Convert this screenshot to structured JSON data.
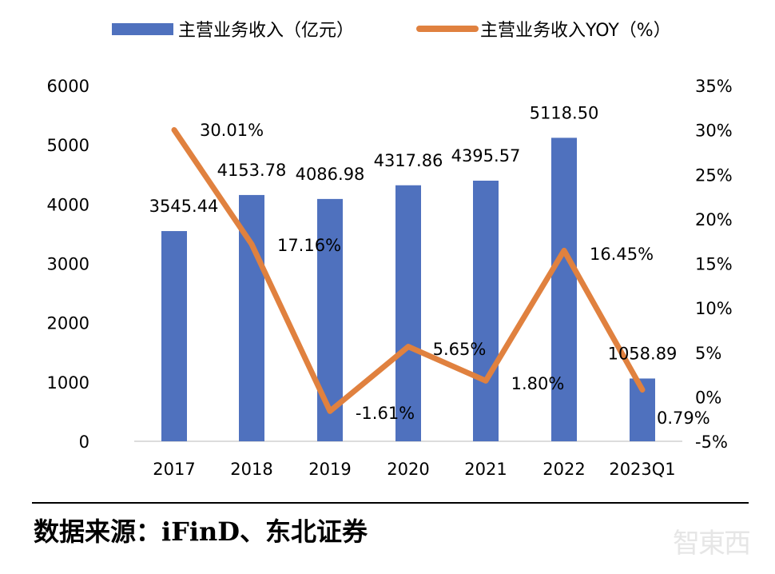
{
  "chart_data": {
    "type": "bar+line",
    "categories": [
      "2017",
      "2018",
      "2019",
      "2020",
      "2021",
      "2022",
      "2023Q1"
    ],
    "series": [
      {
        "name": "主营业务收入（亿元）",
        "type": "bar",
        "axis": "left",
        "color": "#4f71be",
        "values": [
          3545.44,
          4153.78,
          4086.98,
          4317.86,
          4395.57,
          5118.5,
          1058.89
        ],
        "labels": [
          "3545.44",
          "4153.78",
          "4086.98",
          "4317.86",
          "4395.57",
          "5118.50",
          "1058.89"
        ]
      },
      {
        "name": "主营业务收入YOY（%）",
        "type": "line",
        "axis": "right",
        "color": "#e0813f",
        "values": [
          30.01,
          17.16,
          -1.61,
          5.65,
          1.8,
          16.45,
          0.79
        ],
        "labels": [
          "30.01%",
          "17.16%",
          "-1.61%",
          "5.65%",
          "1.80%",
          "16.45%",
          "0.79%"
        ]
      }
    ],
    "left_axis": {
      "range": [
        0,
        6000
      ],
      "ticks": [
        "0",
        "1000",
        "2000",
        "3000",
        "4000",
        "5000",
        "6000"
      ]
    },
    "right_axis": {
      "range": [
        -5,
        35
      ],
      "ticks": [
        "-5%",
        "0%",
        "5%",
        "10%",
        "15%",
        "20%",
        "25%",
        "30%",
        "35%"
      ]
    },
    "grid": false,
    "legend": "top"
  },
  "source": "数据来源：iFinD、东北证券",
  "watermark": "智東西"
}
